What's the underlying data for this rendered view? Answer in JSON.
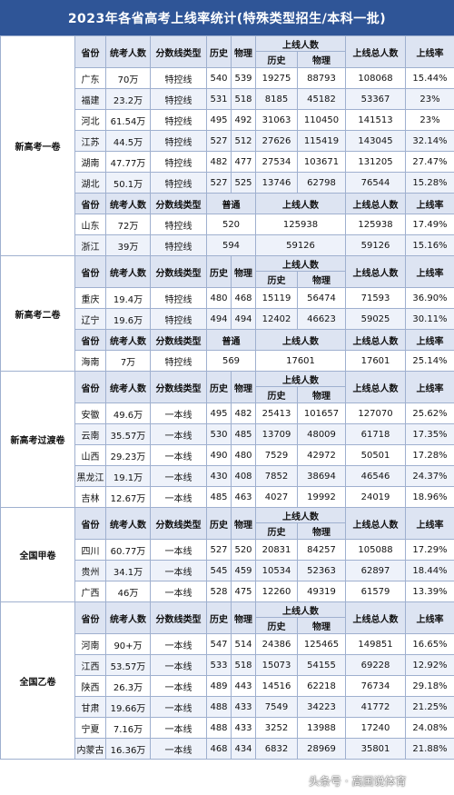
{
  "title": "2023年各省高考上线率统计(特殊类型招生/本科一批)",
  "watermark": "头条号 · 高国说体育",
  "colors": {
    "header_bg": "#2f5597",
    "head_row": "#dde4f2",
    "band": "#eef2fa",
    "border": "#9fb0cf"
  },
  "labels": {
    "province": "省份",
    "exam_count": "统考人数",
    "line_type": "分数线类型",
    "history": "历史",
    "physics": "物理",
    "online": "上线人数",
    "total": "上线总人数",
    "rate": "上线率",
    "general": "普通"
  },
  "sections": [
    {
      "name": "新高考一卷",
      "rows": [
        {
          "province": "广东",
          "count": "70万",
          "type": "特控线",
          "hist": "540",
          "phys": "539",
          "oh": "19275",
          "op": "88793",
          "total": "108068",
          "rate": "15.44%"
        },
        {
          "province": "福建",
          "count": "23.2万",
          "type": "特控线",
          "hist": "531",
          "phys": "518",
          "oh": "8185",
          "op": "45182",
          "total": "53367",
          "rate": "23%"
        },
        {
          "province": "河北",
          "count": "61.54万",
          "type": "特控线",
          "hist": "495",
          "phys": "492",
          "oh": "31063",
          "op": "110450",
          "total": "141513",
          "rate": "23%"
        },
        {
          "province": "江苏",
          "count": "44.5万",
          "type": "特控线",
          "hist": "527",
          "phys": "512",
          "oh": "27626",
          "op": "115419",
          "total": "143045",
          "rate": "32.14%"
        },
        {
          "province": "湖南",
          "count": "47.77万",
          "type": "特控线",
          "hist": "482",
          "phys": "477",
          "oh": "27534",
          "op": "103671",
          "total": "131205",
          "rate": "27.47%"
        },
        {
          "province": "湖北",
          "count": "50.1万",
          "type": "特控线",
          "hist": "527",
          "phys": "525",
          "oh": "13746",
          "op": "62798",
          "total": "76544",
          "rate": "15.28%"
        }
      ],
      "rows2": [
        {
          "province": "山东",
          "count": "72万",
          "type": "特控线",
          "score": "520",
          "online": "125938",
          "total": "125938",
          "rate": "17.49%"
        },
        {
          "province": "浙江",
          "count": "39万",
          "type": "特控线",
          "score": "594",
          "online": "59126",
          "total": "59126",
          "rate": "15.16%"
        }
      ]
    },
    {
      "name": "新高考二卷",
      "rows": [
        {
          "province": "重庆",
          "count": "19.4万",
          "type": "特控线",
          "hist": "480",
          "phys": "468",
          "oh": "15119",
          "op": "56474",
          "total": "71593",
          "rate": "36.90%"
        },
        {
          "province": "辽宁",
          "count": "19.6万",
          "type": "特控线",
          "hist": "494",
          "phys": "494",
          "oh": "12402",
          "op": "46623",
          "total": "59025",
          "rate": "30.11%"
        }
      ],
      "rows2": [
        {
          "province": "海南",
          "count": "7万",
          "type": "特控线",
          "score": "569",
          "online": "17601",
          "total": "17601",
          "rate": "25.14%"
        }
      ]
    },
    {
      "name": "新高考过渡卷",
      "rows": [
        {
          "province": "安徽",
          "count": "49.6万",
          "type": "一本线",
          "hist": "495",
          "phys": "482",
          "oh": "25413",
          "op": "101657",
          "total": "127070",
          "rate": "25.62%"
        },
        {
          "province": "云南",
          "count": "35.57万",
          "type": "一本线",
          "hist": "530",
          "phys": "485",
          "oh": "13709",
          "op": "48009",
          "total": "61718",
          "rate": "17.35%"
        },
        {
          "province": "山西",
          "count": "29.23万",
          "type": "一本线",
          "hist": "490",
          "phys": "480",
          "oh": "7529",
          "op": "42972",
          "total": "50501",
          "rate": "17.28%"
        },
        {
          "province": "黑龙江",
          "count": "19.1万",
          "type": "一本线",
          "hist": "430",
          "phys": "408",
          "oh": "7852",
          "op": "38694",
          "total": "46546",
          "rate": "24.37%"
        },
        {
          "province": "吉林",
          "count": "12.67万",
          "type": "一本线",
          "hist": "485",
          "phys": "463",
          "oh": "4027",
          "op": "19992",
          "total": "24019",
          "rate": "18.96%"
        }
      ],
      "rows2": []
    },
    {
      "name": "全国甲卷",
      "rows": [
        {
          "province": "四川",
          "count": "60.77万",
          "type": "一本线",
          "hist": "527",
          "phys": "520",
          "oh": "20831",
          "op": "84257",
          "total": "105088",
          "rate": "17.29%"
        },
        {
          "province": "贵州",
          "count": "34.1万",
          "type": "一本线",
          "hist": "545",
          "phys": "459",
          "oh": "10534",
          "op": "52363",
          "total": "62897",
          "rate": "18.44%"
        },
        {
          "province": "广西",
          "count": "46万",
          "type": "一本线",
          "hist": "528",
          "phys": "475",
          "oh": "12260",
          "op": "49319",
          "total": "61579",
          "rate": "13.39%"
        }
      ],
      "rows2": []
    },
    {
      "name": "全国乙卷",
      "rows": [
        {
          "province": "河南",
          "count": "90+万",
          "type": "一本线",
          "hist": "547",
          "phys": "514",
          "oh": "24386",
          "op": "125465",
          "total": "149851",
          "rate": "16.65%"
        },
        {
          "province": "江西",
          "count": "53.57万",
          "type": "一本线",
          "hist": "533",
          "phys": "518",
          "oh": "15073",
          "op": "54155",
          "total": "69228",
          "rate": "12.92%"
        },
        {
          "province": "陕西",
          "count": "26.3万",
          "type": "一本线",
          "hist": "489",
          "phys": "443",
          "oh": "14516",
          "op": "62218",
          "total": "76734",
          "rate": "29.18%"
        },
        {
          "province": "甘肃",
          "count": "19.66万",
          "type": "一本线",
          "hist": "488",
          "phys": "433",
          "oh": "7549",
          "op": "34223",
          "total": "41772",
          "rate": "21.25%"
        },
        {
          "province": "宁夏",
          "count": "7.16万",
          "type": "一本线",
          "hist": "488",
          "phys": "433",
          "oh": "3252",
          "op": "13988",
          "total": "17240",
          "rate": "24.08%"
        },
        {
          "province": "内蒙古",
          "count": "16.36万",
          "type": "一本线",
          "hist": "468",
          "phys": "434",
          "oh": "6832",
          "op": "28969",
          "total": "35801",
          "rate": "21.88%"
        }
      ],
      "rows2": []
    }
  ]
}
